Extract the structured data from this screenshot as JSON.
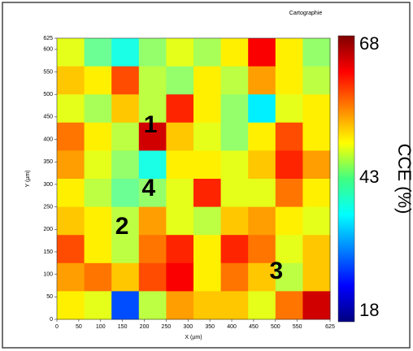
{
  "chart_data": {
    "type": "heatmap",
    "title": "Cartographie",
    "xlabel": "X (µm)",
    "ylabel": "Y (µm)",
    "colorbar_label": "CCE (%)",
    "xlim": [
      0,
      625
    ],
    "ylim": [
      0,
      625
    ],
    "xticks": [
      0,
      50,
      100,
      150,
      200,
      250,
      300,
      350,
      400,
      450,
      500,
      550,
      625
    ],
    "yticks": [
      0,
      50,
      100,
      150,
      200,
      250,
      300,
      350,
      400,
      450,
      500,
      550,
      600,
      625
    ],
    "zlim": [
      18,
      68
    ],
    "zticks": [
      18,
      43,
      68
    ],
    "colormap": "jet",
    "z": [
      [
        48,
        42,
        38,
        44,
        48,
        45,
        50,
        62,
        50,
        44
      ],
      [
        52,
        50,
        58,
        46,
        44,
        50,
        46,
        54,
        50,
        46
      ],
      [
        48,
        45,
        52,
        46,
        60,
        50,
        44,
        36,
        48,
        50
      ],
      [
        56,
        50,
        46,
        64,
        52,
        48,
        44,
        50,
        58,
        50
      ],
      [
        54,
        48,
        44,
        38,
        50,
        50,
        48,
        52,
        60,
        54
      ],
      [
        50,
        46,
        42,
        44,
        48,
        60,
        48,
        48,
        56,
        50
      ],
      [
        52,
        50,
        46,
        54,
        48,
        46,
        52,
        54,
        50,
        48
      ],
      [
        58,
        50,
        46,
        56,
        60,
        50,
        60,
        56,
        48,
        52
      ],
      [
        54,
        56,
        52,
        58,
        62,
        50,
        56,
        52,
        46,
        52
      ],
      [
        50,
        48,
        28,
        46,
        54,
        52,
        52,
        48,
        56,
        64
      ]
    ],
    "annotations": [
      {
        "text": "1",
        "x": 214,
        "y": 430
      },
      {
        "text": "4",
        "x": 210,
        "y": 289
      },
      {
        "text": "2",
        "x": 149,
        "y": 204
      },
      {
        "text": "3",
        "x": 502,
        "y": 105
      }
    ]
  }
}
